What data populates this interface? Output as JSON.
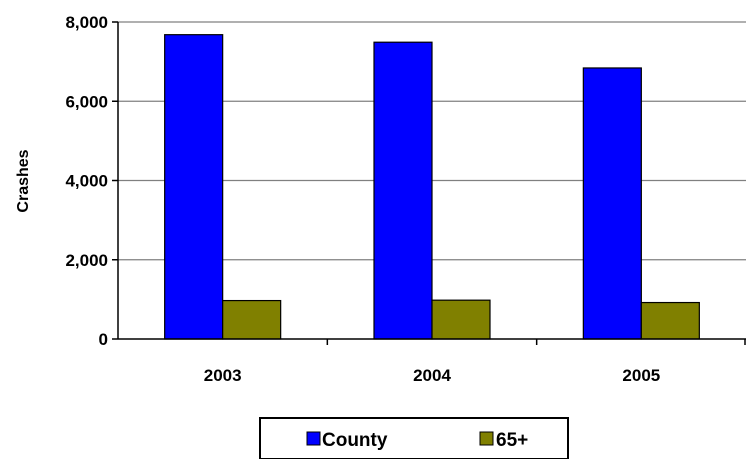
{
  "chart_data": {
    "type": "bar",
    "title": "",
    "xlabel": "",
    "ylabel": "Crashes",
    "categories": [
      "2003",
      "2004",
      "2005"
    ],
    "series": [
      {
        "name": "County",
        "color": "#0000FF",
        "values": [
          7680,
          7490,
          6840
        ]
      },
      {
        "name": "65+",
        "color": "#808000",
        "values": [
          970,
          980,
          920
        ]
      }
    ],
    "ylim": [
      0,
      8000
    ],
    "yticks": [
      0,
      2000,
      4000,
      6000,
      8000
    ],
    "ytick_labels": [
      "0",
      "2,000",
      "4,000",
      "6,000",
      "8,000"
    ],
    "grid": true,
    "legend": "bottom"
  }
}
